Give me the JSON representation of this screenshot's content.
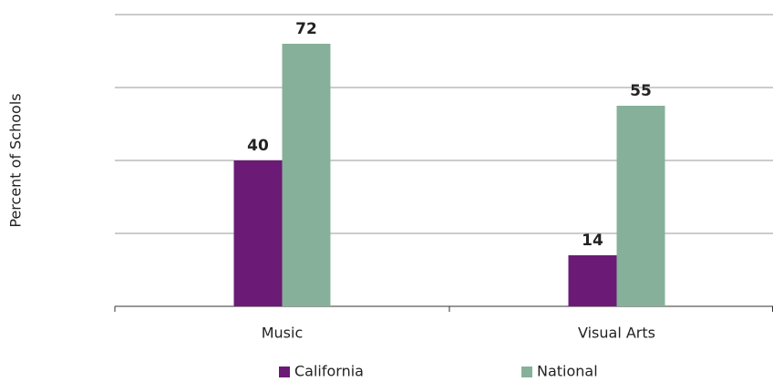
{
  "chart_data": {
    "type": "bar",
    "y_label": "Percent of Schools",
    "categories": [
      "Music",
      "Visual Arts"
    ],
    "series": [
      {
        "name": "California",
        "color": "#6b1b75",
        "values": [
          40,
          14
        ]
      },
      {
        "name": "National",
        "color": "#86b09a",
        "values": [
          72,
          55
        ]
      }
    ],
    "ylim": [
      0,
      80
    ],
    "yticks": [
      0,
      20,
      40,
      60,
      80
    ],
    "grid": true,
    "legend": "bottom"
  }
}
